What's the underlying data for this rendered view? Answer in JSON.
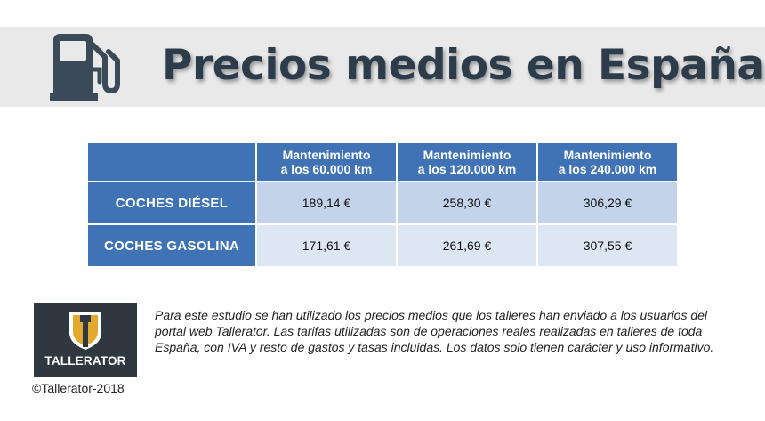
{
  "header": {
    "title": "Precios medios en España",
    "icon": "fuel-pump-icon"
  },
  "table": {
    "columns": [
      {
        "line1": "Mantenimiento",
        "line2": "a los 60.000 km"
      },
      {
        "line1": "Mantenimiento",
        "line2": "a los 120.000 km"
      },
      {
        "line1": "Mantenimiento",
        "line2": "a los 240.000 km"
      }
    ],
    "rows": [
      {
        "label": "COCHES DIÉSEL",
        "values": [
          "189,14 €",
          "258,30 €",
          "306,29 €"
        ]
      },
      {
        "label": "COCHES GASOLINA",
        "values": [
          "171,61 €",
          "261,69 €",
          "307,55 €"
        ]
      }
    ],
    "colors": {
      "header_bg": "#3f73b6",
      "row1_bg": "#c3d3ea",
      "row2_bg": "#dde6f3"
    }
  },
  "brand": {
    "logo_text": "TALLERATOR",
    "logo_icon": "tallerator-shield-icon",
    "copyright": "©Tallerator-2018",
    "colors": {
      "logo_bg": "#2f3740",
      "shield_gold": "#e3a92e",
      "shield_white": "#ffffff"
    }
  },
  "note": "Para este estudio se han utilizado los precios medios que los talleres han enviado a los usuarios del portal web Tallerator. Las tarifas utilizadas son de operaciones reales realizadas en talleres de toda España, con IVA y resto de gastos y tasas incluidas. Los datos solo tienen carácter y uso informativo."
}
